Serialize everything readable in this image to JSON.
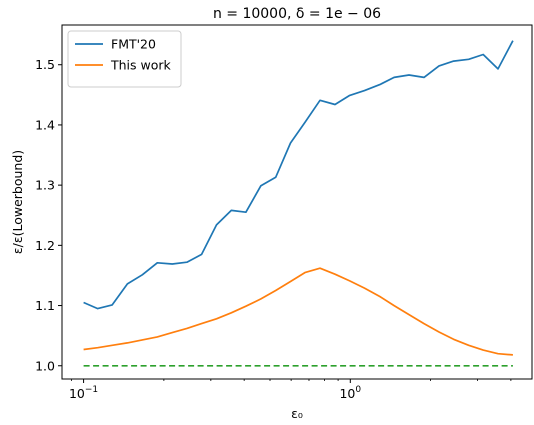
{
  "chart_data": {
    "type": "line",
    "title": "n = 10000, δ = 1e − 06",
    "xlabel": "ε₀",
    "ylabel": "ε/ε(Lowerbound)",
    "xscale": "log",
    "xlim": [
      0.083,
      4.8
    ],
    "ylim": [
      0.978,
      1.566
    ],
    "xticks": [
      {
        "value": 0.1,
        "base": "10",
        "exp": "−1"
      },
      {
        "value": 1,
        "base": "10",
        "exp": "0"
      }
    ],
    "yticks": [
      1.0,
      1.1,
      1.2,
      1.3,
      1.4,
      1.5
    ],
    "ytick_labels": [
      "1.0",
      "1.1",
      "1.2",
      "1.3",
      "1.4",
      "1.5"
    ],
    "legend_position": "upper-left",
    "series": [
      {
        "name": "FMT'20",
        "color": "#1f77b4",
        "style": "solid",
        "x": [
          0.1,
          0.113,
          0.128,
          0.146,
          0.166,
          0.189,
          0.215,
          0.244,
          0.277,
          0.315,
          0.358,
          0.406,
          0.462,
          0.525,
          0.597,
          0.678,
          0.77,
          0.876,
          0.995,
          1.13,
          1.29,
          1.46,
          1.66,
          1.89,
          2.15,
          2.44,
          2.78,
          3.15,
          3.58,
          4.07
        ],
        "y": [
          1.105,
          1.095,
          1.101,
          1.136,
          1.151,
          1.171,
          1.169,
          1.172,
          1.185,
          1.234,
          1.258,
          1.255,
          1.299,
          1.313,
          1.37,
          1.405,
          1.441,
          1.434,
          1.449,
          1.457,
          1.467,
          1.479,
          1.483,
          1.479,
          1.498,
          1.506,
          1.509,
          1.517,
          1.493,
          1.54
        ]
      },
      {
        "name": "This work",
        "color": "#ff7f0e",
        "style": "solid",
        "x": [
          0.1,
          0.113,
          0.128,
          0.146,
          0.166,
          0.189,
          0.215,
          0.244,
          0.277,
          0.315,
          0.358,
          0.406,
          0.462,
          0.525,
          0.597,
          0.678,
          0.77,
          0.876,
          0.995,
          1.13,
          1.29,
          1.46,
          1.66,
          1.89,
          2.15,
          2.44,
          2.78,
          3.15,
          3.58,
          4.07
        ],
        "y": [
          1.027,
          1.03,
          1.034,
          1.038,
          1.043,
          1.048,
          1.055,
          1.062,
          1.07,
          1.078,
          1.088,
          1.099,
          1.111,
          1.125,
          1.14,
          1.155,
          1.162,
          1.152,
          1.141,
          1.129,
          1.115,
          1.1,
          1.085,
          1.07,
          1.056,
          1.044,
          1.034,
          1.026,
          1.02,
          1.018
        ]
      },
      {
        "color": "#2ca02c",
        "style": "dashed",
        "x": [
          0.1,
          4.07
        ],
        "y": [
          1.0,
          1.0
        ]
      }
    ]
  }
}
